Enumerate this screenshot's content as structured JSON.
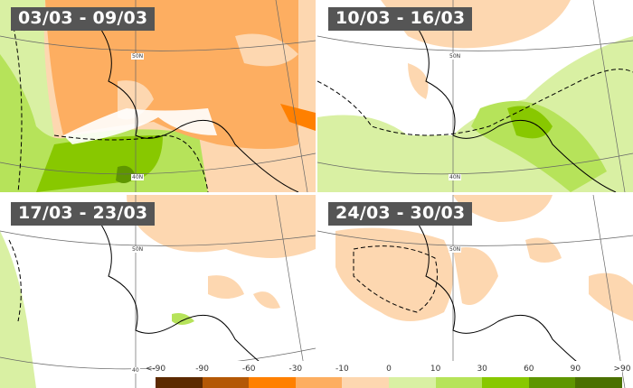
{
  "panels": [
    {
      "title": "03/03 - 09/03",
      "grid_labels": [
        "50N",
        "40N"
      ]
    },
    {
      "title": "10/03 - 16/03",
      "grid_labels": [
        "50N",
        "40N"
      ]
    },
    {
      "title": "17/03 - 23/03",
      "grid_labels": [
        "50N",
        "40"
      ]
    },
    {
      "title": "24/03 - 30/03",
      "grid_labels": [
        "50N"
      ]
    }
  ],
  "legend": {
    "labels": [
      "<-90",
      "-90",
      "-60",
      "-30",
      "-10",
      "0",
      "10",
      "30",
      "60",
      "90",
      ">90"
    ],
    "colors": [
      "#5c2a00",
      "#b35806",
      "#ff8000",
      "#fdae61",
      "#fdd7b0",
      "#d9f0a3",
      "#b6e35a",
      "#88c800",
      "#5f9600",
      "#4a7000"
    ]
  }
}
